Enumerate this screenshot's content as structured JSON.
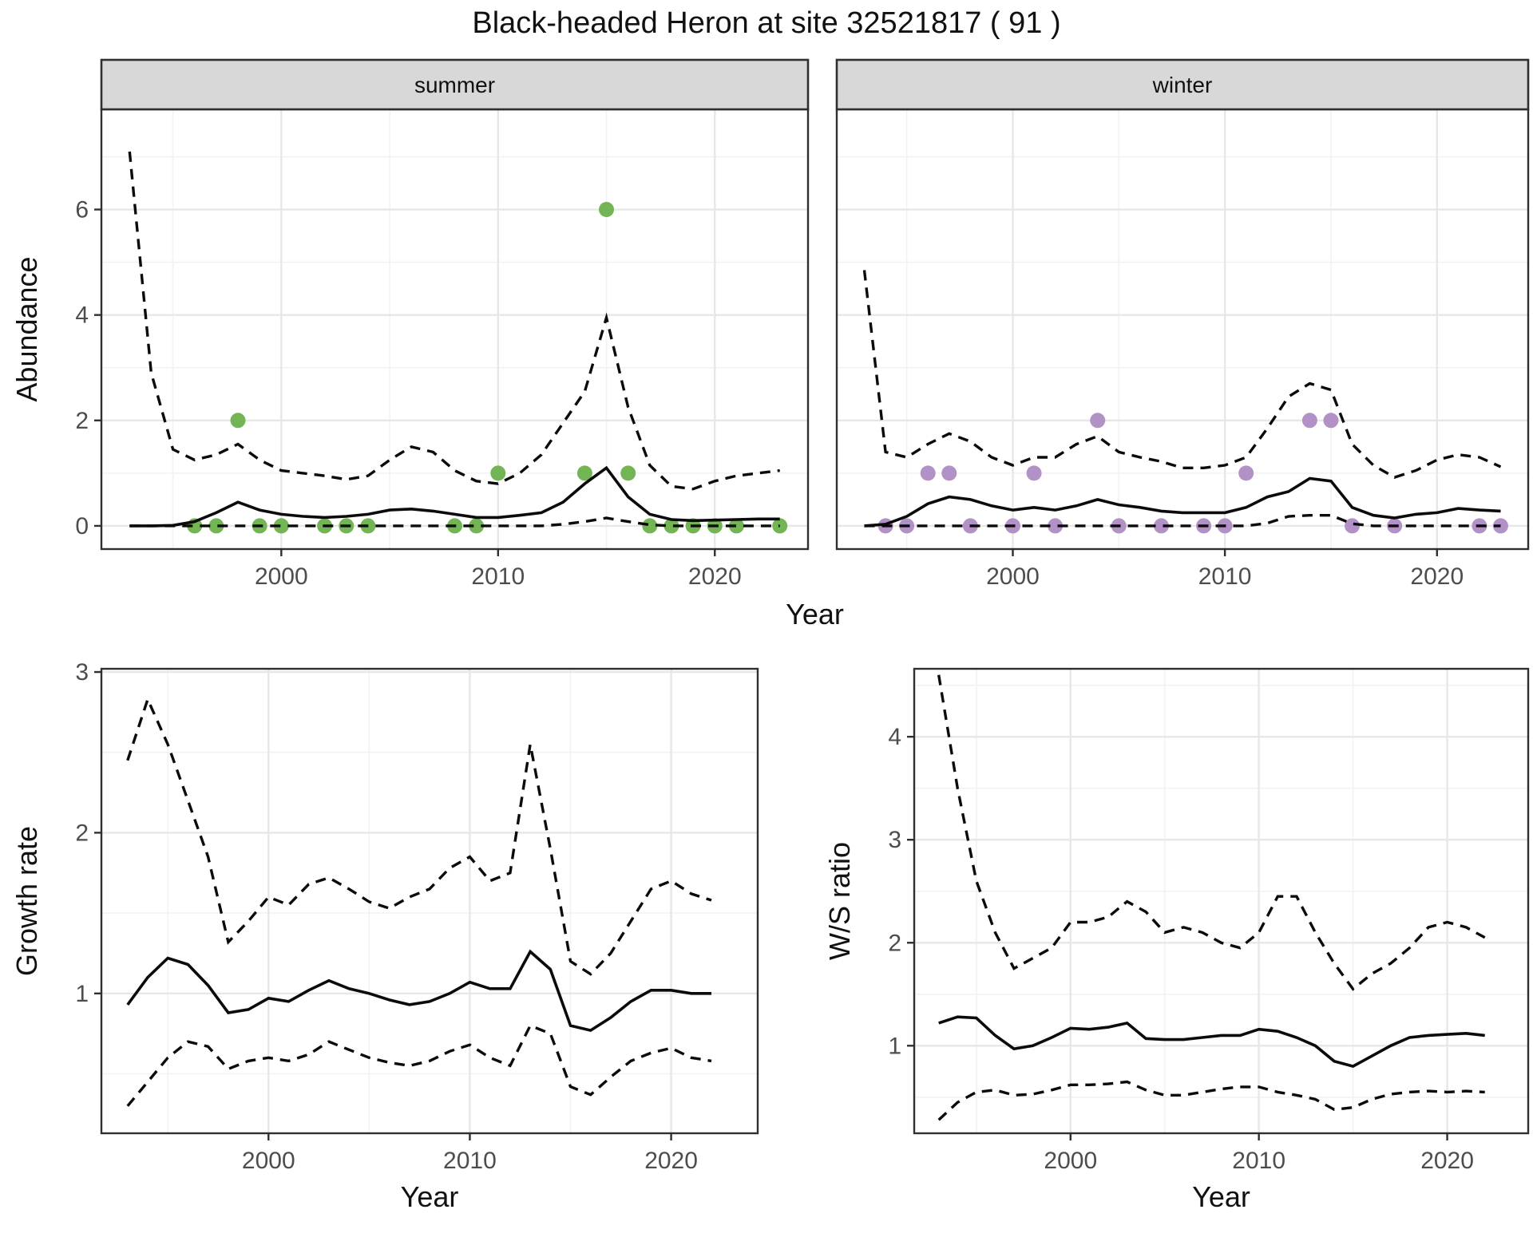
{
  "title": "Black-headed Heron at site 32521817 ( 91 )",
  "colors": {
    "background": "#ffffff",
    "panel_border": "#2f2f2f",
    "grid_major": "#e7e7e7",
    "grid_minor": "#f2f2f2",
    "strip_fill": "#d8d8d8",
    "strip_border": "#2f2f2f",
    "tick_label": "#4d4d4d",
    "axis_title": "#111111",
    "line": "#0b0b0b",
    "summer_point": "#73b455",
    "winter_point": "#b291c6"
  },
  "top_row": {
    "ylabel": "Abundance",
    "xlabel": "Year"
  },
  "chart_data": [
    {
      "type": "line",
      "id": "abundance_summer",
      "facet_label": "summer",
      "xlim": [
        1991.7,
        2024.3
      ],
      "ylim": [
        -0.44,
        7.9
      ],
      "x_ticks": [
        {
          "v": 2000,
          "label": "2000"
        },
        {
          "v": 2010,
          "label": "2010"
        },
        {
          "v": 2020,
          "label": "2020"
        }
      ],
      "x_minor": [
        1995,
        2005,
        2015
      ],
      "y_ticks": [
        {
          "v": 0,
          "label": "0"
        },
        {
          "v": 2,
          "label": "2"
        },
        {
          "v": 4,
          "label": "4"
        },
        {
          "v": 6,
          "label": "6"
        }
      ],
      "y_minor": [
        1,
        3,
        5,
        7
      ],
      "show_y_labels": true,
      "series_x": [
        1993,
        1994,
        1995,
        1996,
        1997,
        1998,
        1999,
        2000,
        2001,
        2002,
        2003,
        2004,
        2005,
        2006,
        2007,
        2008,
        2009,
        2010,
        2011,
        2012,
        2013,
        2014,
        2015,
        2016,
        2017,
        2018,
        2019,
        2020,
        2021,
        2022,
        2023
      ],
      "upper": [
        7.1,
        2.9,
        1.45,
        1.25,
        1.35,
        1.55,
        1.25,
        1.05,
        1.0,
        0.95,
        0.88,
        0.95,
        1.25,
        1.5,
        1.4,
        1.05,
        0.85,
        0.8,
        1.0,
        1.35,
        1.95,
        2.55,
        3.95,
        2.25,
        1.15,
        0.75,
        0.7,
        0.85,
        0.95,
        1.0,
        1.05
      ],
      "fit": [
        0.0,
        0.0,
        0.01,
        0.08,
        0.25,
        0.45,
        0.3,
        0.22,
        0.18,
        0.16,
        0.18,
        0.22,
        0.3,
        0.32,
        0.28,
        0.22,
        0.16,
        0.16,
        0.2,
        0.25,
        0.45,
        0.8,
        1.1,
        0.55,
        0.22,
        0.12,
        0.1,
        0.11,
        0.12,
        0.13,
        0.13
      ],
      "lower": [
        0,
        0,
        0,
        0,
        0,
        0,
        0,
        0,
        0,
        0,
        0,
        0,
        0,
        0,
        0,
        0,
        0,
        0,
        0,
        0,
        0.03,
        0.08,
        0.15,
        0.08,
        0.02,
        0,
        0,
        0,
        0,
        0,
        0
      ],
      "points_x": [
        1996,
        1997,
        1998,
        1999,
        2000,
        2002,
        2003,
        2004,
        2008,
        2009,
        2010,
        2014,
        2015,
        2016,
        2017,
        2018,
        2019,
        2020,
        2021,
        2023
      ],
      "points_y": [
        0,
        0,
        2,
        0,
        0,
        0,
        0,
        0,
        0,
        0,
        1,
        1,
        6,
        1,
        0,
        0,
        0,
        0,
        0,
        0
      ],
      "point_color_key": "summer_point"
    },
    {
      "type": "line",
      "id": "abundance_winter",
      "facet_label": "winter",
      "xlim": [
        1991.7,
        2024.3
      ],
      "ylim": [
        -0.44,
        7.9
      ],
      "x_ticks": [
        {
          "v": 2000,
          "label": "2000"
        },
        {
          "v": 2010,
          "label": "2010"
        },
        {
          "v": 2020,
          "label": "2020"
        }
      ],
      "x_minor": [
        1995,
        2005,
        2015
      ],
      "y_ticks": [
        {
          "v": 0,
          "label": "0"
        },
        {
          "v": 2,
          "label": "2"
        },
        {
          "v": 4,
          "label": "4"
        },
        {
          "v": 6,
          "label": "6"
        }
      ],
      "y_minor": [
        1,
        3,
        5,
        7
      ],
      "show_y_labels": false,
      "series_x": [
        1993,
        1994,
        1995,
        1996,
        1997,
        1998,
        1999,
        2000,
        2001,
        2002,
        2003,
        2004,
        2005,
        2006,
        2007,
        2008,
        2009,
        2010,
        2011,
        2012,
        2013,
        2014,
        2015,
        2016,
        2017,
        2018,
        2019,
        2020,
        2021,
        2022,
        2023
      ],
      "upper": [
        4.85,
        1.4,
        1.3,
        1.55,
        1.75,
        1.6,
        1.3,
        1.15,
        1.3,
        1.3,
        1.55,
        1.7,
        1.4,
        1.3,
        1.22,
        1.1,
        1.1,
        1.15,
        1.3,
        1.85,
        2.45,
        2.7,
        2.58,
        1.55,
        1.15,
        0.92,
        1.05,
        1.25,
        1.35,
        1.3,
        1.12
      ],
      "fit": [
        0.0,
        0.03,
        0.18,
        0.42,
        0.55,
        0.5,
        0.38,
        0.3,
        0.35,
        0.3,
        0.38,
        0.5,
        0.4,
        0.35,
        0.28,
        0.25,
        0.25,
        0.25,
        0.35,
        0.55,
        0.65,
        0.9,
        0.85,
        0.35,
        0.2,
        0.15,
        0.22,
        0.25,
        0.33,
        0.3,
        0.28
      ],
      "lower": [
        0,
        0,
        0,
        0,
        0,
        0,
        0,
        0,
        0,
        0,
        0,
        0,
        0,
        0,
        0,
        0,
        0,
        0,
        0,
        0.05,
        0.18,
        0.2,
        0.2,
        0.04,
        0,
        0,
        0,
        0,
        0,
        0,
        0
      ],
      "points_x": [
        1994,
        1995,
        1996,
        1997,
        1998,
        2000,
        2001,
        2002,
        2004,
        2005,
        2007,
        2009,
        2010,
        2011,
        2014,
        2015,
        2016,
        2018,
        2022,
        2023
      ],
      "points_y": [
        0,
        0,
        1,
        1,
        0,
        0,
        1,
        0,
        2,
        0,
        0,
        0,
        0,
        1,
        2,
        2,
        0,
        0,
        0,
        0
      ],
      "point_color_key": "winter_point"
    },
    {
      "type": "line",
      "id": "growth_rate",
      "ylabel": "Growth rate",
      "xlabel": "Year",
      "xlim": [
        1991.7,
        2024.3
      ],
      "ylim": [
        0.13,
        3.02
      ],
      "x_ticks": [
        {
          "v": 2000,
          "label": "2000"
        },
        {
          "v": 2010,
          "label": "2010"
        },
        {
          "v": 2020,
          "label": "2020"
        }
      ],
      "x_minor": [
        1995,
        2005,
        2015
      ],
      "y_ticks": [
        {
          "v": 1,
          "label": "1"
        },
        {
          "v": 2,
          "label": "2"
        },
        {
          "v": 3,
          "label": "3"
        }
      ],
      "y_minor": [
        0.5,
        1.5,
        2.5
      ],
      "show_y_labels": true,
      "series_x": [
        1993,
        1994,
        1995,
        1996,
        1997,
        1998,
        1999,
        2000,
        2001,
        2002,
        2003,
        2004,
        2005,
        2006,
        2007,
        2008,
        2009,
        2010,
        2011,
        2012,
        2013,
        2014,
        2015,
        2016,
        2017,
        2018,
        2019,
        2020,
        2021,
        2022
      ],
      "upper": [
        2.45,
        2.83,
        2.55,
        2.2,
        1.85,
        1.32,
        1.45,
        1.6,
        1.55,
        1.68,
        1.72,
        1.65,
        1.57,
        1.53,
        1.6,
        1.65,
        1.78,
        1.85,
        1.7,
        1.75,
        2.55,
        1.9,
        1.2,
        1.12,
        1.25,
        1.45,
        1.65,
        1.7,
        1.62,
        1.58
      ],
      "fit": [
        0.93,
        1.1,
        1.22,
        1.18,
        1.05,
        0.88,
        0.9,
        0.97,
        0.95,
        1.02,
        1.08,
        1.03,
        1.0,
        0.96,
        0.93,
        0.95,
        1.0,
        1.07,
        1.03,
        1.03,
        1.26,
        1.15,
        0.8,
        0.77,
        0.85,
        0.95,
        1.02,
        1.02,
        1.0,
        1.0
      ],
      "lower": [
        0.3,
        0.45,
        0.6,
        0.7,
        0.67,
        0.53,
        0.58,
        0.6,
        0.58,
        0.62,
        0.7,
        0.65,
        0.6,
        0.57,
        0.55,
        0.58,
        0.64,
        0.68,
        0.6,
        0.55,
        0.8,
        0.75,
        0.42,
        0.37,
        0.48,
        0.58,
        0.63,
        0.66,
        0.6,
        0.58
      ],
      "points_x": [],
      "points_y": []
    },
    {
      "type": "line",
      "id": "ws_ratio",
      "ylabel": "W/S ratio",
      "xlabel": "Year",
      "xlim": [
        1991.7,
        2024.3
      ],
      "ylim": [
        0.15,
        4.66
      ],
      "x_ticks": [
        {
          "v": 2000,
          "label": "2000"
        },
        {
          "v": 2010,
          "label": "2010"
        },
        {
          "v": 2020,
          "label": "2020"
        }
      ],
      "x_minor": [
        1995,
        2005,
        2015
      ],
      "y_ticks": [
        {
          "v": 1,
          "label": "1"
        },
        {
          "v": 2,
          "label": "2"
        },
        {
          "v": 3,
          "label": "3"
        },
        {
          "v": 4,
          "label": "4"
        }
      ],
      "y_minor": [
        0.5,
        1.5,
        2.5,
        3.5,
        4.5
      ],
      "show_y_labels": true,
      "series_x": [
        1993,
        1994,
        1995,
        1996,
        1997,
        1998,
        1999,
        2000,
        2001,
        2002,
        2003,
        2004,
        2005,
        2006,
        2007,
        2008,
        2009,
        2010,
        2011,
        2012,
        2013,
        2014,
        2015,
        2016,
        2017,
        2018,
        2019,
        2020,
        2021,
        2022
      ],
      "upper": [
        4.6,
        3.5,
        2.6,
        2.1,
        1.75,
        1.85,
        1.95,
        2.2,
        2.2,
        2.25,
        2.4,
        2.3,
        2.1,
        2.15,
        2.1,
        2.0,
        1.95,
        2.1,
        2.45,
        2.45,
        2.1,
        1.8,
        1.55,
        1.7,
        1.8,
        1.95,
        2.15,
        2.2,
        2.15,
        2.05
      ],
      "fit": [
        1.22,
        1.28,
        1.27,
        1.1,
        0.97,
        1.0,
        1.08,
        1.17,
        1.16,
        1.18,
        1.22,
        1.07,
        1.06,
        1.06,
        1.08,
        1.1,
        1.1,
        1.16,
        1.14,
        1.08,
        1.0,
        0.85,
        0.8,
        0.9,
        1.0,
        1.08,
        1.1,
        1.11,
        1.12,
        1.1
      ],
      "lower": [
        0.28,
        0.45,
        0.55,
        0.57,
        0.52,
        0.53,
        0.57,
        0.62,
        0.62,
        0.63,
        0.65,
        0.57,
        0.52,
        0.52,
        0.55,
        0.58,
        0.6,
        0.6,
        0.55,
        0.52,
        0.48,
        0.38,
        0.4,
        0.48,
        0.53,
        0.55,
        0.56,
        0.55,
        0.56,
        0.55
      ],
      "points_x": [],
      "points_y": []
    }
  ]
}
